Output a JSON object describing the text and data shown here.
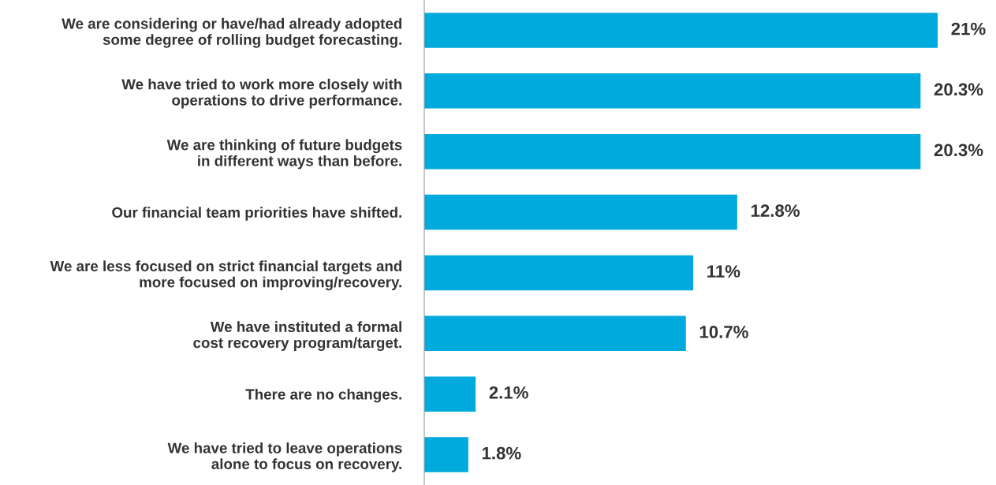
{
  "chart_data": {
    "type": "bar",
    "orientation": "horizontal",
    "categories": [
      "We are considering or have/had already adopted\nsome degree of rolling budget forecasting.",
      "We have tried to work more closely with\noperations to drive performance.",
      "We are thinking of future budgets\nin different ways than before.",
      "Our financial team priorities have shifted.",
      "We are less focused on strict financial targets and\nmore focused on improving/recovery.",
      "We have instituted a formal\ncost recovery program/target.",
      "There are no changes.",
      "We have tried to leave operations\nalone to focus on recovery."
    ],
    "values": [
      21,
      20.3,
      20.3,
      12.8,
      11,
      10.7,
      2.1,
      1.8
    ],
    "value_labels": [
      "21%",
      "20.3%",
      "20.3%",
      "12.8%",
      "11%",
      "10.7%",
      "2.1%",
      "1.8%"
    ],
    "color": "#00aadc",
    "tick_labels": "y",
    "grid": false,
    "legend": false
  }
}
